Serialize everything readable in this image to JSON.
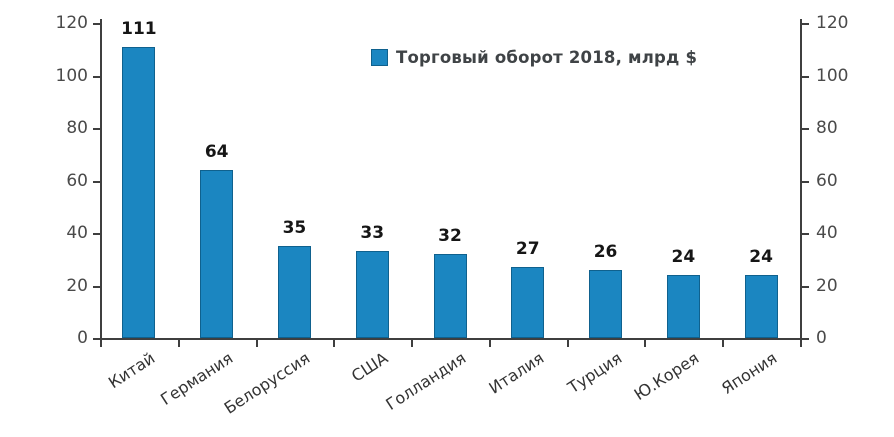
{
  "chart_data": {
    "type": "bar",
    "title": "",
    "legend": "Торговый оборот 2018, млрд $",
    "legend_position": "top-center",
    "categories": [
      "Китай",
      "Германия",
      "Белоруссия",
      "США",
      "Голландия",
      "Италия",
      "Турция",
      "Ю.Корея",
      "Япония"
    ],
    "values": [
      111,
      64,
      35,
      33,
      32,
      27,
      26,
      24,
      24
    ],
    "xlabel": "",
    "ylabel": "",
    "ylim": [
      0,
      120
    ],
    "yticks": [
      0,
      20,
      40,
      60,
      80,
      100,
      120
    ],
    "dual_y_axis": true,
    "grid": false,
    "data_labels_shown": true,
    "colors": {
      "bar_fill": "#1b86c1",
      "bar_border": "#0f618e",
      "axis": "#3f3f3f",
      "tick_label": "#4a4a4a",
      "value_label": "#161616",
      "category_label": "#333333",
      "legend_text": "#3f4346",
      "background": "#ffffff"
    }
  }
}
